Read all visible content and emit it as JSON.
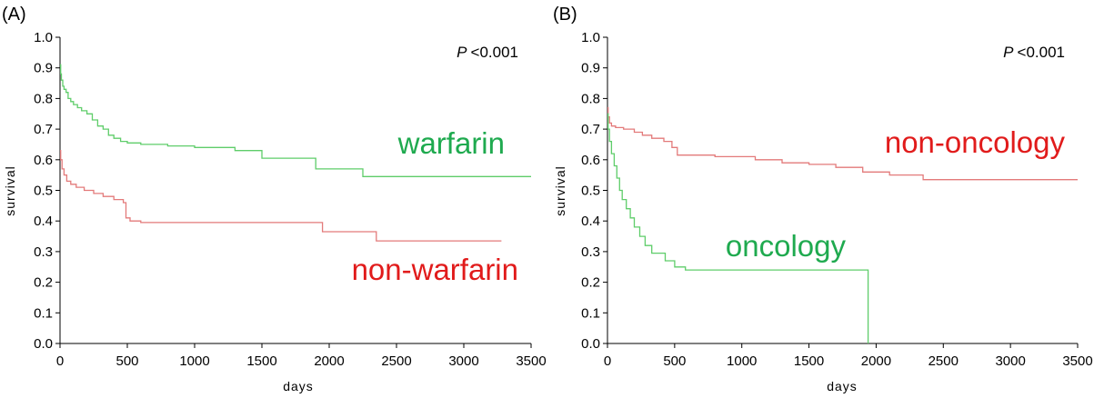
{
  "colors": {
    "green": "#1faa4f",
    "red": "#e11b1b",
    "line_green": "#5fcd6a",
    "line_red": "#e37a7a"
  },
  "chart_data": [
    {
      "type": "line",
      "step": true,
      "panel_label": "(A)",
      "xlabel": "days",
      "ylabel": "survival",
      "xlim": [
        0,
        3500
      ],
      "ylim": [
        0,
        1.0
      ],
      "xticks": [
        0,
        500,
        1000,
        1500,
        2000,
        2500,
        3000,
        3500
      ],
      "yticks": [
        0.0,
        0.1,
        0.2,
        0.3,
        0.4,
        0.5,
        0.6,
        0.7,
        0.8,
        0.9,
        1.0
      ],
      "grid": false,
      "p_value": {
        "p": "P",
        "rest": "<0.001"
      },
      "series": [
        {
          "name": "warfarin",
          "color": "green",
          "x": [
            0,
            5,
            10,
            20,
            30,
            45,
            60,
            80,
            100,
            130,
            160,
            200,
            240,
            280,
            320,
            360,
            400,
            450,
            500,
            600,
            800,
            1000,
            1300,
            1500,
            1900,
            2250,
            3500
          ],
          "y": [
            0.91,
            0.88,
            0.86,
            0.84,
            0.83,
            0.82,
            0.8,
            0.79,
            0.78,
            0.77,
            0.76,
            0.75,
            0.73,
            0.71,
            0.7,
            0.68,
            0.67,
            0.66,
            0.655,
            0.65,
            0.645,
            0.64,
            0.63,
            0.605,
            0.57,
            0.545,
            0.545
          ]
        },
        {
          "name": "non-warfarin",
          "color": "red",
          "x": [
            0,
            5,
            15,
            30,
            50,
            80,
            120,
            180,
            250,
            320,
            400,
            470,
            490,
            520,
            600,
            1950,
            2350,
            3280
          ],
          "y": [
            0.63,
            0.6,
            0.57,
            0.55,
            0.53,
            0.52,
            0.51,
            0.5,
            0.49,
            0.48,
            0.47,
            0.46,
            0.41,
            0.4,
            0.395,
            0.365,
            0.335,
            0.335
          ]
        }
      ],
      "annotations": [
        {
          "text": "warfarin",
          "color": "green"
        },
        {
          "text": "non-warfarin",
          "color": "red"
        }
      ]
    },
    {
      "type": "line",
      "step": true,
      "panel_label": "(B)",
      "xlabel": "days",
      "ylabel": "survival",
      "xlim": [
        0,
        3500
      ],
      "ylim": [
        0,
        1.0
      ],
      "xticks": [
        0,
        500,
        1000,
        1500,
        2000,
        2500,
        3000,
        3500
      ],
      "yticks": [
        0.0,
        0.1,
        0.2,
        0.3,
        0.4,
        0.5,
        0.6,
        0.7,
        0.8,
        0.9,
        1.0
      ],
      "grid": false,
      "p_value": {
        "p": "P",
        "rest": "<0.001"
      },
      "series": [
        {
          "name": "non-oncology",
          "color": "red",
          "x": [
            0,
            5,
            15,
            30,
            60,
            120,
            200,
            260,
            330,
            420,
            480,
            520,
            800,
            1100,
            1300,
            1500,
            1700,
            1900,
            2100,
            2350,
            3500
          ],
          "y": [
            0.77,
            0.74,
            0.72,
            0.71,
            0.705,
            0.7,
            0.69,
            0.68,
            0.67,
            0.66,
            0.64,
            0.615,
            0.61,
            0.6,
            0.59,
            0.585,
            0.575,
            0.56,
            0.55,
            0.535,
            0.535
          ]
        },
        {
          "name": "oncology",
          "color": "green",
          "x": [
            0,
            5,
            15,
            30,
            50,
            70,
            90,
            110,
            140,
            170,
            200,
            240,
            280,
            330,
            430,
            500,
            580,
            1930,
            1940
          ],
          "y": [
            0.75,
            0.7,
            0.66,
            0.62,
            0.58,
            0.54,
            0.5,
            0.47,
            0.44,
            0.41,
            0.38,
            0.35,
            0.32,
            0.295,
            0.27,
            0.25,
            0.24,
            0.24,
            0.0
          ]
        }
      ],
      "annotations": [
        {
          "text": "non-oncology",
          "color": "red"
        },
        {
          "text": "oncology",
          "color": "green"
        }
      ]
    }
  ]
}
